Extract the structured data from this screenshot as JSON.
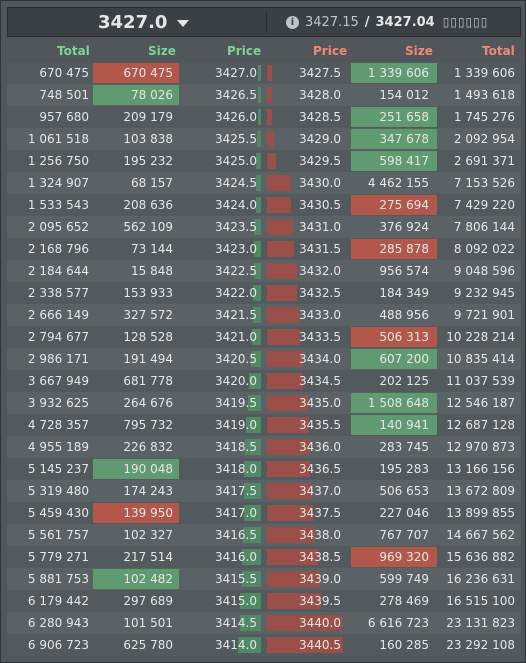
{
  "ticker": {
    "last_price": "3427.0",
    "bid": "3427.15",
    "separator": " / ",
    "ask": "3427.04",
    "extra": "▯▯▯▯▯▯"
  },
  "columns": {
    "bid_total": "Total",
    "bid_size": "Size",
    "bid_price": "Price",
    "ask_price": "Price",
    "ask_size": "Size",
    "ask_total": "Total"
  },
  "colors": {
    "bid": "#7fd39a",
    "ask": "#f08a7a",
    "bid_bar": "#4f8a64",
    "ask_bar": "#9a5048",
    "size_green": "#5f9a70",
    "size_red": "#b4574b"
  },
  "rows": [
    {
      "bid_total": "670 475",
      "bid_size": "670 475",
      "bid_price": "3427.0",
      "ask_price": "3427.5",
      "ask_size": "1 339 606",
      "ask_total": "1 339 606",
      "bid_bar": 0.03,
      "ask_bar": 0.06,
      "bid_size_hl": "red",
      "ask_size_hl": "green"
    },
    {
      "bid_total": "748 501",
      "bid_size": "78 026",
      "bid_price": "3426.5",
      "ask_price": "3428.0",
      "ask_size": "154 012",
      "ask_total": "1 493 618",
      "bid_bar": 0.03,
      "ask_bar": 0.06,
      "bid_size_hl": "green",
      "ask_size_hl": ""
    },
    {
      "bid_total": "957 680",
      "bid_size": "209 179",
      "bid_price": "3426.0",
      "ask_price": "3428.5",
      "ask_size": "251 658",
      "ask_total": "1 745 276",
      "bid_bar": 0.04,
      "ask_bar": 0.07,
      "bid_size_hl": "",
      "ask_size_hl": "green"
    },
    {
      "bid_total": "1 061 518",
      "bid_size": "103 838",
      "bid_price": "3425.5",
      "ask_price": "3429.0",
      "ask_size": "347 678",
      "ask_total": "2 092 954",
      "bid_bar": 0.05,
      "ask_bar": 0.09,
      "bid_size_hl": "",
      "ask_size_hl": "green"
    },
    {
      "bid_total": "1 256 750",
      "bid_size": "195 232",
      "bid_price": "3425.0",
      "ask_price": "3429.5",
      "ask_size": "598 417",
      "ask_total": "2 691 371",
      "bid_bar": 0.06,
      "ask_bar": 0.12,
      "bid_size_hl": "",
      "ask_size_hl": "green"
    },
    {
      "bid_total": "1 324 907",
      "bid_size": "68 157",
      "bid_price": "3424.5",
      "ask_price": "3430.0",
      "ask_size": "4 462 155",
      "ask_total": "7 153 526",
      "bid_bar": 0.06,
      "ask_bar": 0.31,
      "bid_size_hl": "",
      "ask_size_hl": ""
    },
    {
      "bid_total": "1 533 543",
      "bid_size": "208 636",
      "bid_price": "3424.0",
      "ask_price": "3430.5",
      "ask_size": "275 694",
      "ask_total": "7 429 220",
      "bid_bar": 0.07,
      "ask_bar": 0.32,
      "bid_size_hl": "",
      "ask_size_hl": "red"
    },
    {
      "bid_total": "2 095 652",
      "bid_size": "562 109",
      "bid_price": "3423.5",
      "ask_price": "3431.0",
      "ask_size": "376 924",
      "ask_total": "7 806 144",
      "bid_bar": 0.09,
      "ask_bar": 0.34,
      "bid_size_hl": "",
      "ask_size_hl": ""
    },
    {
      "bid_total": "2 168 796",
      "bid_size": "73 144",
      "bid_price": "3423.0",
      "ask_price": "3431.5",
      "ask_size": "285 878",
      "ask_total": "8 092 022",
      "bid_bar": 0.09,
      "ask_bar": 0.35,
      "bid_size_hl": "",
      "ask_size_hl": "red"
    },
    {
      "bid_total": "2 184 644",
      "bid_size": "15 848",
      "bid_price": "3422.5",
      "ask_price": "3432.0",
      "ask_size": "956 574",
      "ask_total": "9 048 596",
      "bid_bar": 0.09,
      "ask_bar": 0.39,
      "bid_size_hl": "",
      "ask_size_hl": ""
    },
    {
      "bid_total": "2 338 577",
      "bid_size": "153 933",
      "bid_price": "3422.0",
      "ask_price": "3432.5",
      "ask_size": "184 349",
      "ask_total": "9 232 945",
      "bid_bar": 0.1,
      "ask_bar": 0.4,
      "bid_size_hl": "",
      "ask_size_hl": ""
    },
    {
      "bid_total": "2 666 149",
      "bid_size": "327 572",
      "bid_price": "3421.5",
      "ask_price": "3433.0",
      "ask_size": "488 956",
      "ask_total": "9 721 901",
      "bid_bar": 0.11,
      "ask_bar": 0.42,
      "bid_size_hl": "",
      "ask_size_hl": ""
    },
    {
      "bid_total": "2 794 677",
      "bid_size": "128 528",
      "bid_price": "3421.0",
      "ask_price": "3433.5",
      "ask_size": "506 313",
      "ask_total": "10 228 214",
      "bid_bar": 0.12,
      "ask_bar": 0.44,
      "bid_size_hl": "",
      "ask_size_hl": "red"
    },
    {
      "bid_total": "2 986 171",
      "bid_size": "191 494",
      "bid_price": "3420.5",
      "ask_price": "3434.0",
      "ask_size": "607 200",
      "ask_total": "10 835 414",
      "bid_bar": 0.13,
      "ask_bar": 0.47,
      "bid_size_hl": "",
      "ask_size_hl": "green"
    },
    {
      "bid_total": "3 667 949",
      "bid_size": "681 778",
      "bid_price": "3420.0",
      "ask_price": "3434.5",
      "ask_size": "202 125",
      "ask_total": "11 037 539",
      "bid_bar": 0.16,
      "ask_bar": 0.47,
      "bid_size_hl": "",
      "ask_size_hl": ""
    },
    {
      "bid_total": "3 932 625",
      "bid_size": "264 676",
      "bid_price": "3419.5",
      "ask_price": "3435.0",
      "ask_size": "1 508 648",
      "ask_total": "12 546 187",
      "bid_bar": 0.17,
      "ask_bar": 0.54,
      "bid_size_hl": "",
      "ask_size_hl": "green"
    },
    {
      "bid_total": "4 728 357",
      "bid_size": "795 732",
      "bid_price": "3419.0",
      "ask_price": "3435.5",
      "ask_size": "140 941",
      "ask_total": "12 687 128",
      "bid_bar": 0.2,
      "ask_bar": 0.55,
      "bid_size_hl": "",
      "ask_size_hl": "green"
    },
    {
      "bid_total": "4 955 189",
      "bid_size": "226 832",
      "bid_price": "3418.5",
      "ask_price": "3436.0",
      "ask_size": "283 745",
      "ask_total": "12 970 873",
      "bid_bar": 0.21,
      "ask_bar": 0.56,
      "bid_size_hl": "",
      "ask_size_hl": ""
    },
    {
      "bid_total": "5 145 237",
      "bid_size": "190 048",
      "bid_price": "3418.0",
      "ask_price": "3436.5",
      "ask_size": "195 283",
      "ask_total": "13 166 156",
      "bid_bar": 0.22,
      "ask_bar": 0.57,
      "bid_size_hl": "green",
      "ask_size_hl": ""
    },
    {
      "bid_total": "5 319 480",
      "bid_size": "174 243",
      "bid_price": "3417.5",
      "ask_price": "3437.0",
      "ask_size": "506 653",
      "ask_total": "13 672 809",
      "bid_bar": 0.23,
      "ask_bar": 0.59,
      "bid_size_hl": "",
      "ask_size_hl": ""
    },
    {
      "bid_total": "5 459 430",
      "bid_size": "139 950",
      "bid_price": "3417.0",
      "ask_price": "3437.5",
      "ask_size": "227 046",
      "ask_total": "13 899 855",
      "bid_bar": 0.23,
      "ask_bar": 0.6,
      "bid_size_hl": "red",
      "ask_size_hl": ""
    },
    {
      "bid_total": "5 561 757",
      "bid_size": "102 327",
      "bid_price": "3416.5",
      "ask_price": "3438.0",
      "ask_size": "767 707",
      "ask_total": "14 667 562",
      "bid_bar": 0.24,
      "ask_bar": 0.63,
      "bid_size_hl": "",
      "ask_size_hl": ""
    },
    {
      "bid_total": "5 779 271",
      "bid_size": "217 514",
      "bid_price": "3416.0",
      "ask_price": "3438.5",
      "ask_size": "969 320",
      "ask_total": "15 636 882",
      "bid_bar": 0.25,
      "ask_bar": 0.67,
      "bid_size_hl": "",
      "ask_size_hl": "red"
    },
    {
      "bid_total": "5 881 753",
      "bid_size": "102 482",
      "bid_price": "3415.5",
      "ask_price": "3439.0",
      "ask_size": "599 749",
      "ask_total": "16 236 631",
      "bid_bar": 0.25,
      "ask_bar": 0.7,
      "bid_size_hl": "green",
      "ask_size_hl": ""
    },
    {
      "bid_total": "6 179 442",
      "bid_size": "297 689",
      "bid_price": "3415.0",
      "ask_price": "3439.5",
      "ask_size": "278 469",
      "ask_total": "16 515 100",
      "bid_bar": 0.27,
      "ask_bar": 0.71,
      "bid_size_hl": "",
      "ask_size_hl": ""
    },
    {
      "bid_total": "6 280 943",
      "bid_size": "101 501",
      "bid_price": "3414.5",
      "ask_price": "3440.0",
      "ask_size": "6 616 723",
      "ask_total": "23 131 823",
      "bid_bar": 0.27,
      "ask_bar": 0.99,
      "bid_size_hl": "",
      "ask_size_hl": ""
    },
    {
      "bid_total": "6 906 723",
      "bid_size": "625 780",
      "bid_price": "3414.0",
      "ask_price": "3440.5",
      "ask_size": "160 285",
      "ask_total": "23 292 108",
      "bid_bar": 0.3,
      "ask_bar": 1.0,
      "bid_size_hl": "",
      "ask_size_hl": ""
    }
  ]
}
